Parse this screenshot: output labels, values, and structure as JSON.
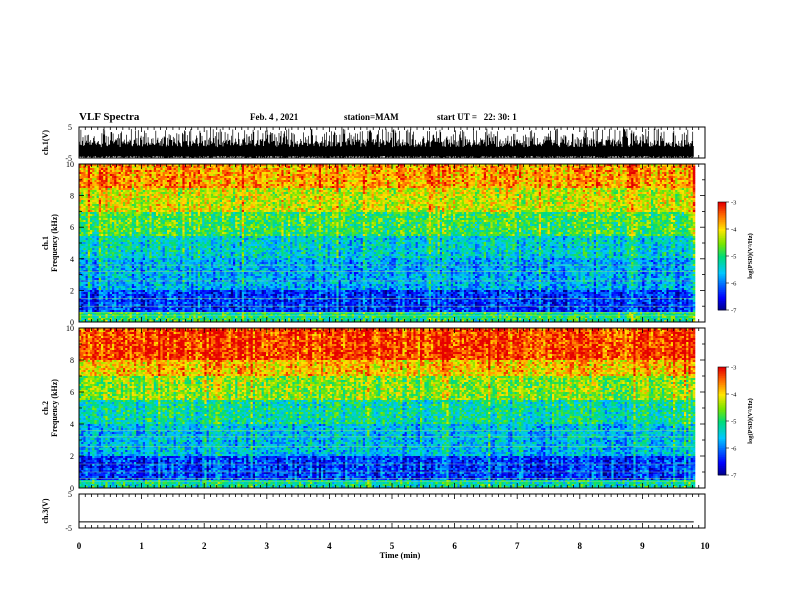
{
  "header": {
    "title": "VLF Spectra",
    "date": "Feb. 4 , 2021",
    "station": "station=MAM",
    "start": "start UT =   22: 30: 1"
  },
  "chart_data": [
    {
      "type": "line",
      "panel": "ch1-waveform",
      "ylabel": "ch.1(V)",
      "ylim": [
        -5,
        5
      ],
      "yticks": [
        "5",
        "-5"
      ],
      "xlim": [
        0,
        10
      ],
      "description_values": {
        "typical_min": -5,
        "typical_max": 1
      }
    },
    {
      "type": "heatmap",
      "panel": "ch1-spectrogram",
      "ylabel": "ch.1\nFrequency (kHz)",
      "ylim": [
        0,
        10
      ],
      "yticks": [
        "0",
        "2",
        "4",
        "6",
        "8",
        "10"
      ],
      "xlim": [
        0,
        10
      ],
      "colorbar": {
        "label": "log(PSD)(V²/Hz)",
        "range": [
          -7,
          -3
        ],
        "ticks": [
          "-3",
          "-4",
          "-5",
          "-6",
          "-7"
        ]
      },
      "bands": [
        {
          "f_from": 0,
          "f_to": 0.6,
          "level": -5.0
        },
        {
          "f_from": 0.6,
          "f_to": 2.0,
          "level": -6.3
        },
        {
          "f_from": 2.0,
          "f_to": 4.0,
          "level": -5.7
        },
        {
          "f_from": 4.0,
          "f_to": 5.5,
          "level": -5.4
        },
        {
          "f_from": 5.5,
          "f_to": 7.0,
          "level": -4.8
        },
        {
          "f_from": 7.0,
          "f_to": 8.5,
          "level": -4.2
        },
        {
          "f_from": 8.5,
          "f_to": 10,
          "level": -3.7
        }
      ]
    },
    {
      "type": "heatmap",
      "panel": "ch2-spectrogram",
      "ylabel": "ch.2\nFrequency (kHz)",
      "ylim": [
        0,
        10
      ],
      "yticks": [
        "0",
        "2",
        "4",
        "6",
        "8",
        "10"
      ],
      "xlim": [
        0,
        10
      ],
      "colorbar": {
        "label": "log(PSD)(V²/Hz)",
        "range": [
          -7,
          -3
        ],
        "ticks": [
          "-3",
          "-4",
          "-5",
          "-6",
          "-7"
        ]
      },
      "bands": [
        {
          "f_from": 0,
          "f_to": 0.5,
          "level": -5.2
        },
        {
          "f_from": 0.5,
          "f_to": 2.0,
          "level": -6.3
        },
        {
          "f_from": 2.0,
          "f_to": 4.0,
          "level": -5.6
        },
        {
          "f_from": 4.0,
          "f_to": 5.5,
          "level": -5.2
        },
        {
          "f_from": 5.5,
          "f_to": 7.0,
          "level": -4.5
        },
        {
          "f_from": 7.0,
          "f_to": 8.0,
          "level": -3.9
        },
        {
          "f_from": 8.0,
          "f_to": 10,
          "level": -3.3
        }
      ]
    },
    {
      "type": "line",
      "panel": "ch3-waveform",
      "ylabel": "ch.3(V)",
      "ylim": [
        -5,
        5
      ],
      "yticks": [
        "5",
        "-5"
      ],
      "xlim": [
        0,
        10
      ],
      "xlabel": "Time (min)",
      "xticks": [
        "0",
        "1",
        "2",
        "3",
        "4",
        "5",
        "6",
        "7",
        "8",
        "9",
        "10"
      ],
      "constant_value": -3.2
    }
  ]
}
